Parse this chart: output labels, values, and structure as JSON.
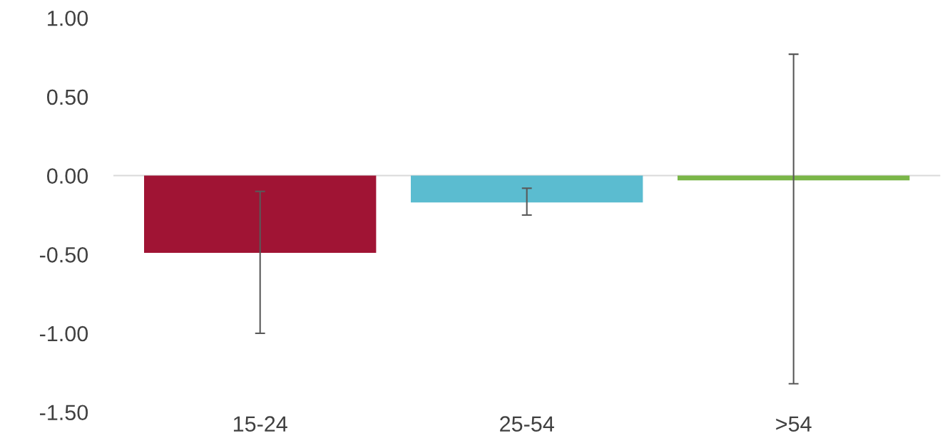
{
  "chart_data": {
    "type": "bar",
    "categories": [
      "15-24",
      "25-54",
      ">54"
    ],
    "values": [
      -0.49,
      -0.17,
      -0.03
    ],
    "colors": [
      "#a01434",
      "#5bbcd0",
      "#7ab648"
    ],
    "errors": [
      [
        -1.0,
        -0.1
      ],
      [
        -0.25,
        -0.08
      ],
      [
        -1.32,
        0.77
      ]
    ],
    "ylim": [
      -1.5,
      1.0
    ],
    "yticks": [
      {
        "value": -1.5,
        "label": "-1.50"
      },
      {
        "value": -1.0,
        "label": "-1.00"
      },
      {
        "value": -0.5,
        "label": "-0.50"
      },
      {
        "value": 0,
        "label": "0.00"
      },
      {
        "value": 0.5,
        "label": "0.50"
      },
      {
        "value": 1.0,
        "label": "1.00"
      }
    ],
    "ref_lines": [
      {
        "axis": "y",
        "value": 0,
        "color": "#d9d9d9"
      }
    ],
    "grid": false
  }
}
